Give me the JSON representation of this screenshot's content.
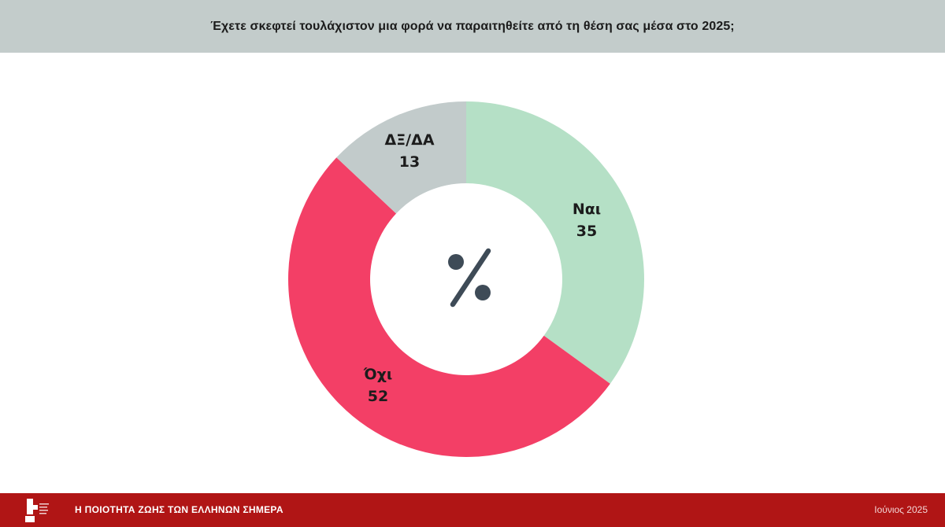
{
  "header": {
    "title": "Έχετε σκεφτεί τουλάχιστον μια φορά να παραιτηθείτε από τη θέση σας μέσα στο 2025;"
  },
  "chart_data": {
    "type": "pie",
    "variant": "donut",
    "title": "Έχετε σκεφτεί τουλάχιστον μια φορά να παραιτηθείτε από τη θέση σας μέσα στο 2025;",
    "center_symbol": "%",
    "slices": [
      {
        "label": "Ναι",
        "value": 35,
        "color": "#b5e0c6"
      },
      {
        "label": "Όχι",
        "value": 52,
        "color": "#f33f66"
      },
      {
        "label": "ΔΞ/ΔΑ",
        "value": 13,
        "color": "#c2cbcb"
      }
    ],
    "start": "top",
    "direction": "clockwise",
    "center_color": "#3e4b57"
  },
  "footer": {
    "title": "Η ΠΟΙΟΤΗΤΑ ΖΩΗΣ ΤΩΝ ΕΛΛΗΝΩΝ ΣΗΜΕΡΑ",
    "date": "Ιούνιος 2025",
    "logo_icon": "brand-logo-icon"
  },
  "colors": {
    "header_bg": "#c3cccb",
    "footer_bg": "#b01515"
  }
}
